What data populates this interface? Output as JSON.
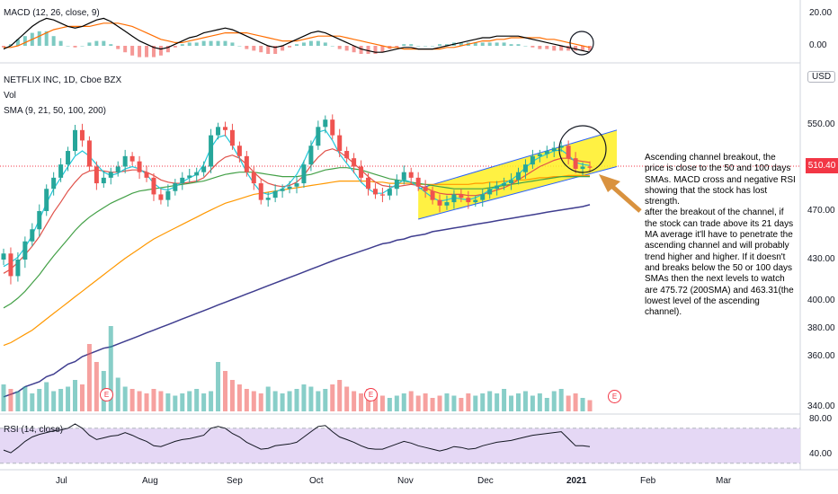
{
  "panes": {
    "macd_title": "MACD (12, 26, close, 9)",
    "main_title": "NETFLIX INC, 1D, Cboe BZX",
    "vol_title": "Vol",
    "sma_title": "SMA (9, 21, 50, 100, 200)",
    "rsi_title": "RSI (14, close)",
    "currency": "USD",
    "last_price": "510.40",
    "earnings_marker": "E"
  },
  "annotation": "Ascending channel breakout, the price is close to the 50 and 100 days SMAs. MACD cross and negative RSI showing that the stock has lost  strength.\nafter the breakout of the channel, if the stock can trade above its 21 days MA average it'll have to penetrate the ascending channel and will probably trend higher and higher. If it doesn't and breaks below the 50 or 100 days SMAs then the next levels to watch are 475.72 (200SMA) and 463.31(the lowest level of the ascending channel).",
  "colors": {
    "up": "#26a69a",
    "down": "#ef5350",
    "sma9": "#21c7d9",
    "sma21": "#e0524a",
    "sma50": "#43a047",
    "sma100": "#ff9800",
    "sma200": "#3f3d8f",
    "channel": "#ffee22",
    "rsi_band": "#e5d8f5",
    "macd": "#000000",
    "signal": "#ff6d00",
    "arrow": "#d9923f"
  },
  "chart_data": [
    {
      "type": "candlestick",
      "title": "NETFLIX INC, 1D, Cboe BZX",
      "x": [
        "Jul",
        "Aug",
        "Sep",
        "Oct",
        "Nov",
        "Dec",
        "2021",
        "Feb",
        "Mar"
      ],
      "y_ticks": [
        "550.00",
        "510.40",
        "470.00",
        "430.00",
        "400.00",
        "380.00",
        "360.00",
        "340.00"
      ],
      "last": 510.4,
      "close_path": [
        435,
        418,
        430,
        445,
        455,
        470,
        490,
        500,
        512,
        525,
        545,
        535,
        510,
        495,
        500,
        505,
        510,
        520,
        515,
        505,
        500,
        485,
        480,
        488,
        495,
        500,
        502,
        505,
        510,
        540,
        548,
        545,
        530,
        520,
        505,
        495,
        480,
        482,
        488,
        490,
        492,
        495,
        512,
        530,
        548,
        555,
        540,
        525,
        518,
        510,
        500,
        490,
        485,
        484,
        490,
        498,
        505,
        500,
        492,
        488,
        480,
        475,
        478,
        485,
        482,
        478,
        480,
        485,
        490,
        493,
        495,
        498,
        505,
        512,
        520,
        522,
        525,
        528,
        530,
        518,
        508,
        510,
        509
      ],
      "sma9_path": [
        425,
        428,
        432,
        440,
        450,
        463,
        477,
        490,
        500,
        510,
        520,
        525,
        520,
        512,
        505,
        502,
        504,
        508,
        510,
        508,
        503,
        495,
        490,
        489,
        492,
        496,
        500,
        503,
        512,
        528,
        538,
        540,
        530,
        518,
        505,
        495,
        487,
        485,
        487,
        490,
        495,
        503,
        515,
        530,
        543,
        545,
        535,
        522,
        513,
        505,
        496,
        490,
        486,
        486,
        490,
        494,
        498,
        496,
        492,
        487,
        482,
        479,
        480,
        482,
        481,
        480,
        482,
        485,
        489,
        492,
        495,
        498,
        503,
        509,
        515,
        519,
        522,
        525,
        526,
        521,
        514,
        512,
        511
      ],
      "sma21_path": [
        420,
        423,
        428,
        434,
        441,
        449,
        459,
        469,
        478,
        488,
        496,
        503,
        506,
        507,
        506,
        505,
        505,
        506,
        507,
        507,
        505,
        502,
        498,
        496,
        495,
        495,
        496,
        497,
        500,
        507,
        514,
        519,
        521,
        518,
        512,
        505,
        499,
        495,
        493,
        492,
        493,
        496,
        502,
        511,
        519,
        525,
        527,
        524,
        519,
        513,
        507,
        501,
        496,
        493,
        492,
        492,
        493,
        494,
        493,
        491,
        488,
        486,
        485,
        485,
        485,
        484,
        484,
        485,
        487,
        489,
        491,
        494,
        498,
        502,
        506,
        510,
        513,
        516,
        518,
        518,
        516,
        515,
        514
      ],
      "sma50_path": [
        395,
        398,
        402,
        407,
        413,
        419,
        426,
        433,
        440,
        447,
        454,
        460,
        465,
        469,
        473,
        477,
        480,
        483,
        486,
        488,
        489,
        490,
        491,
        492,
        493,
        494,
        495,
        496,
        497,
        499,
        501,
        503,
        504,
        505,
        505,
        505,
        504,
        503,
        502,
        501,
        501,
        501,
        502,
        503,
        505,
        507,
        508,
        509,
        509,
        508,
        507,
        505,
        503,
        501,
        499,
        498,
        497,
        496,
        495,
        494,
        493,
        492,
        491,
        490,
        490,
        490,
        490,
        490,
        491,
        492,
        493,
        494,
        495,
        496,
        497,
        498,
        499,
        500,
        501,
        501,
        501,
        501,
        501
      ],
      "sma100_path": [
        368,
        370,
        373,
        376,
        379,
        383,
        387,
        391,
        395,
        399,
        403,
        407,
        411,
        415,
        419,
        423,
        427,
        431,
        435,
        439,
        443,
        447,
        450,
        453,
        456,
        459,
        462,
        465,
        468,
        471,
        474,
        477,
        479,
        481,
        483,
        485,
        486,
        487,
        488,
        489,
        490,
        491,
        492,
        493,
        494,
        495,
        496,
        497,
        497,
        497,
        497,
        497,
        496,
        496,
        495,
        495,
        495,
        495,
        494,
        494,
        494,
        494,
        494,
        494,
        494,
        494,
        495,
        495,
        496,
        496,
        497,
        497,
        498,
        498,
        499,
        500,
        500,
        501,
        501,
        502,
        502,
        502,
        502
      ],
      "sma200_path": [
        344,
        345,
        346,
        348,
        349,
        350,
        352,
        353,
        355,
        357,
        358,
        360,
        362,
        364,
        366,
        367,
        369,
        371,
        373,
        375,
        377,
        379,
        381,
        383,
        385,
        387,
        389,
        391,
        393,
        395,
        397,
        399,
        401,
        403,
        405,
        407,
        409,
        411,
        413,
        415,
        417,
        419,
        421,
        423,
        425,
        427,
        429,
        431,
        433,
        435,
        437,
        439,
        441,
        443,
        444,
        446,
        447,
        449,
        450,
        451,
        453,
        454,
        455,
        456,
        457,
        458,
        459,
        460,
        461,
        462,
        463,
        464,
        465,
        466,
        467,
        468,
        469,
        470,
        471,
        472,
        473,
        474,
        475.72
      ],
      "channel": {
        "upper": [
          490,
          545
        ],
        "lower": [
          463.31,
          510
        ]
      }
    },
    {
      "type": "bar",
      "title": "Vol",
      "values": [
        12,
        10,
        9,
        11,
        8,
        10,
        13,
        9,
        10,
        11,
        14,
        12,
        30,
        22,
        18,
        38,
        15,
        11,
        10,
        9,
        8,
        10,
        9,
        8,
        7,
        8,
        9,
        10,
        8,
        9,
        22,
        18,
        14,
        12,
        10,
        9,
        8,
        11,
        9,
        8,
        9,
        10,
        12,
        11,
        9,
        10,
        12,
        14,
        11,
        9,
        8,
        10,
        8,
        7,
        6,
        7,
        8,
        9,
        7,
        8,
        6,
        7,
        8,
        7,
        6,
        8,
        7,
        8,
        9,
        8,
        10,
        7,
        8,
        9,
        7,
        8,
        6,
        9,
        10,
        7,
        8,
        6,
        5
      ]
    },
    {
      "type": "line",
      "title": "MACD (12, 26, close, 9)",
      "y_ticks": [
        "20.00",
        "0.00"
      ],
      "macd": [
        -2,
        0,
        4,
        8,
        12,
        15,
        17,
        16,
        14,
        12,
        11,
        12,
        14,
        16,
        17,
        15,
        12,
        9,
        6,
        3,
        1,
        -1,
        -2,
        -1,
        1,
        3,
        5,
        6,
        8,
        9,
        10,
        11,
        10,
        8,
        6,
        4,
        2,
        0,
        -1,
        0,
        2,
        4,
        6,
        8,
        9,
        8,
        6,
        4,
        2,
        0,
        -2,
        -3,
        -4,
        -4,
        -3,
        -2,
        -1,
        -1,
        -2,
        -2,
        -2,
        -1,
        0,
        1,
        2,
        3,
        4,
        5,
        5,
        6,
        6,
        6,
        6,
        5,
        4,
        3,
        2,
        1,
        0,
        -1,
        -2,
        -3,
        -4
      ],
      "signal": [
        -1,
        -1,
        0,
        2,
        4,
        6,
        8,
        10,
        11,
        12,
        12,
        12,
        12,
        13,
        14,
        14,
        14,
        13,
        12,
        10,
        8,
        6,
        4,
        3,
        2,
        2,
        3,
        4,
        5,
        6,
        7,
        8,
        8,
        8,
        8,
        7,
        6,
        5,
        4,
        3,
        3,
        3,
        4,
        5,
        6,
        6,
        6,
        6,
        5,
        4,
        3,
        2,
        1,
        0,
        -1,
        -1,
        -2,
        -2,
        -2,
        -2,
        -2,
        -2,
        -1,
        -1,
        0,
        1,
        2,
        3,
        3,
        4,
        4,
        5,
        5,
        5,
        5,
        5,
        4,
        4,
        3,
        2,
        1,
        0,
        -1
      ]
    },
    {
      "type": "line",
      "title": "RSI (14, close)",
      "y_ticks": [
        "80.00",
        "40.00"
      ],
      "values": [
        45,
        42,
        48,
        55,
        60,
        63,
        65,
        67,
        68,
        70,
        75,
        70,
        62,
        57,
        59,
        61,
        62,
        65,
        62,
        58,
        55,
        50,
        49,
        52,
        55,
        57,
        58,
        60,
        62,
        70,
        72,
        70,
        64,
        60,
        54,
        50,
        46,
        47,
        50,
        51,
        52,
        54,
        60,
        66,
        72,
        73,
        66,
        60,
        57,
        54,
        50,
        47,
        46,
        46,
        49,
        52,
        55,
        53,
        50,
        48,
        46,
        44,
        46,
        49,
        48,
        46,
        47,
        50,
        52,
        54,
        55,
        56,
        58,
        60,
        62,
        63,
        64,
        65,
        66,
        58,
        50,
        50,
        49
      ],
      "band": [
        30,
        70
      ]
    }
  ]
}
